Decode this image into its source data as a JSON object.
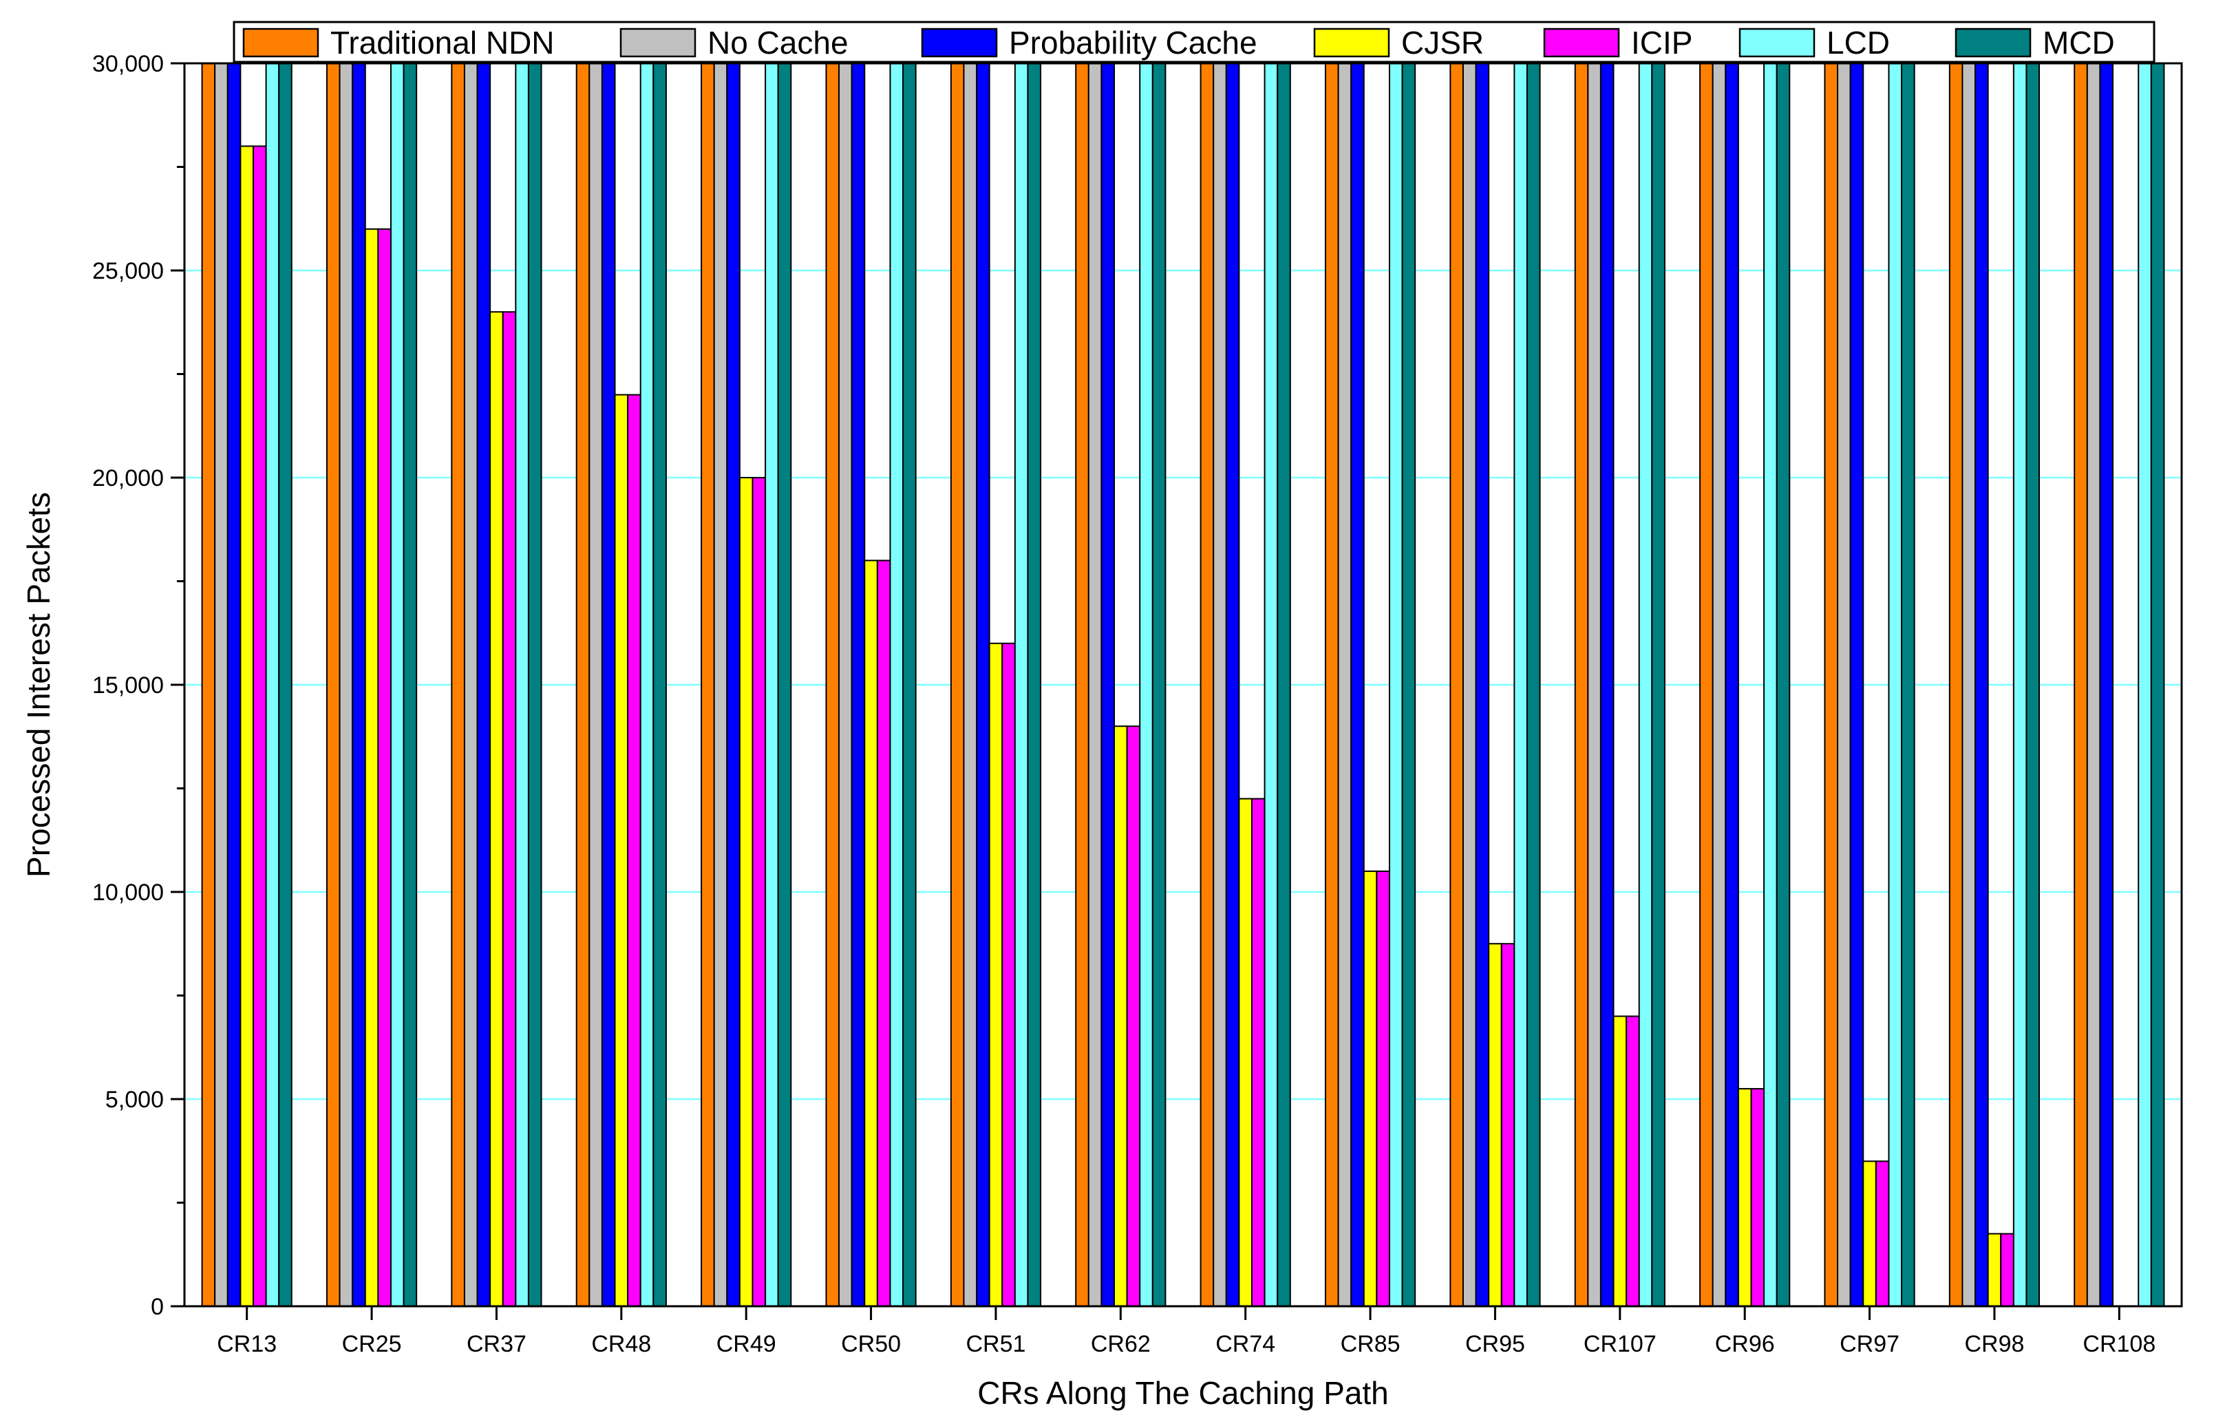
{
  "chart_data": {
    "type": "bar",
    "xlabel": "CRs Along The Caching Path",
    "ylabel": "Processed Interest Packets",
    "ylim": [
      0,
      30000
    ],
    "yticks": [
      0,
      5000,
      10000,
      15000,
      20000,
      25000,
      30000
    ],
    "ytick_labels": [
      "0",
      "5,000",
      "10,000",
      "15,000",
      "20,000",
      "25,000",
      "30,000"
    ],
    "grid": true,
    "legend_position": "top",
    "categories": [
      "CR13",
      "CR25",
      "CR37",
      "CR48",
      "CR49",
      "CR50",
      "CR51",
      "CR62",
      "CR74",
      "CR85",
      "CR95",
      "CR107",
      "CR96",
      "CR97",
      "CR98",
      "CR108"
    ],
    "series": [
      {
        "name": "Traditional NDN",
        "color": "#ff8000",
        "values": [
          30000,
          30000,
          30000,
          30000,
          30000,
          30000,
          30000,
          30000,
          30000,
          30000,
          30000,
          30000,
          30000,
          30000,
          30000,
          30000
        ]
      },
      {
        "name": "No Cache",
        "color": "#c0c0c0",
        "values": [
          30000,
          30000,
          30000,
          30000,
          30000,
          30000,
          30000,
          30000,
          30000,
          30000,
          30000,
          30000,
          30000,
          30000,
          30000,
          30000
        ]
      },
      {
        "name": "Probability Cache",
        "color": "#0000ff",
        "values": [
          30000,
          30000,
          30000,
          30000,
          30000,
          30000,
          30000,
          30000,
          30000,
          30000,
          30000,
          30000,
          30000,
          30000,
          30000,
          30000
        ]
      },
      {
        "name": "CJSR",
        "color": "#ffff00",
        "values": [
          28000,
          26000,
          24000,
          22000,
          20000,
          18000,
          16000,
          14000,
          12250,
          10500,
          8750,
          7000,
          5250,
          3500,
          1750,
          0
        ]
      },
      {
        "name": "ICIP",
        "color": "#ff00ff",
        "values": [
          28000,
          26000,
          24000,
          22000,
          20000,
          18000,
          16000,
          14000,
          12250,
          10500,
          8750,
          7000,
          5250,
          3500,
          1750,
          0
        ]
      },
      {
        "name": "LCD",
        "color": "#80ffff",
        "values": [
          30000,
          30000,
          30000,
          30000,
          30000,
          30000,
          30000,
          30000,
          30000,
          30000,
          30000,
          30000,
          30000,
          30000,
          30000,
          30000
        ]
      },
      {
        "name": "MCD",
        "color": "#008080",
        "values": [
          30000,
          30000,
          30000,
          30000,
          30000,
          30000,
          30000,
          30000,
          30000,
          30000,
          30000,
          30000,
          30000,
          30000,
          30000,
          30000
        ]
      }
    ]
  }
}
